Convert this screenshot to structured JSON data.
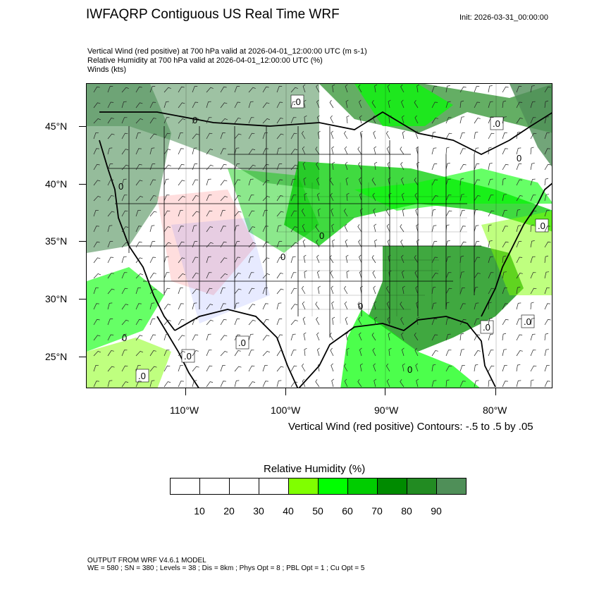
{
  "title": "IWFAQRP Contiguous US Real Time WRF",
  "init": "Init: 2026-03-31_00:00:00",
  "subtitles": [
    "Vertical Wind (red positive) at 700 hPa valid at 2026-04-01_12:00:00 UTC   (m s-1)",
    "Relative Humidity at 700 hPa valid at 2026-04-01_12:00:00 UTC   (%)",
    "Winds   (kts)"
  ],
  "map": {
    "lat_labels": [
      "45°N",
      "40°N",
      "35°N",
      "30°N",
      "25°N"
    ],
    "lon_labels": [
      "110°W",
      "100°W",
      "90°W",
      "80°W"
    ],
    "contour_labels": [
      ".0",
      "0"
    ],
    "contour_note": "Vertical Wind (red positive) Contours: -.5 to .5 by .05"
  },
  "colorbar": {
    "title": "Relative Humidity  (%)",
    "labels": [
      "10",
      "20",
      "30",
      "40",
      "50",
      "60",
      "70",
      "80",
      "90"
    ],
    "colors": [
      "#ffffff",
      "#ffffff",
      "#ffffff",
      "#ffffff",
      "#80ff00",
      "#00ff00",
      "#00cd00",
      "#008b00",
      "#228b22",
      "#4f8f58"
    ]
  },
  "footer": {
    "model": "OUTPUT FROM WRF V4.6.1 MODEL",
    "config": "WE = 580 ; SN = 380 ; Levels = 38 ; Dis = 8km ; Phys Opt = 8 ; PBL Opt = 1 ; Cu Opt = 5"
  }
}
